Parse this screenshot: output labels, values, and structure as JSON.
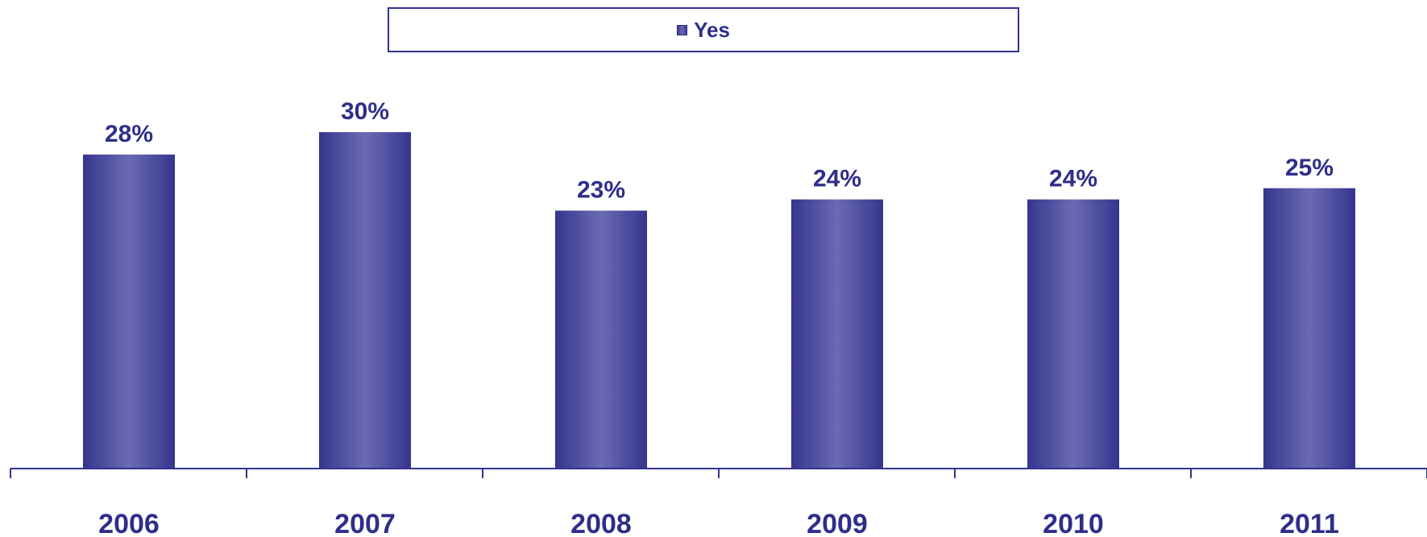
{
  "chart_data": {
    "type": "bar",
    "categories": [
      "2006",
      "2007",
      "2008",
      "2009",
      "2010",
      "2011"
    ],
    "series": [
      {
        "name": "Yes",
        "values": [
          28,
          30,
          23,
          24,
          24,
          25
        ]
      }
    ],
    "data_labels": [
      "28%",
      "30%",
      "23%",
      "24%",
      "24%",
      "25%"
    ],
    "legend": "top-center",
    "grid": false,
    "ylim": [
      0,
      30
    ],
    "colors": {
      "bar_edge": "#3a3a97",
      "bar_center": "#6b6bb3",
      "axis": "#33338f",
      "text": "#2e2e8a"
    }
  }
}
